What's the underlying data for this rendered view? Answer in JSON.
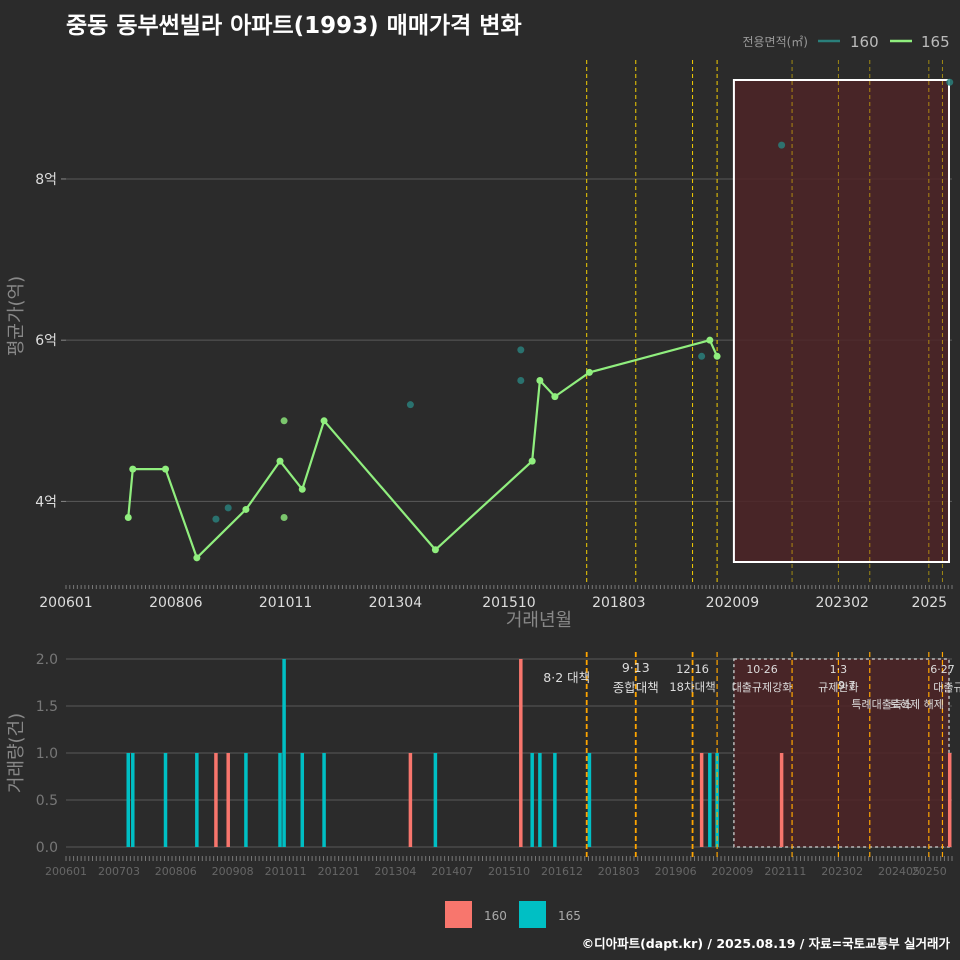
{
  "title": "중동 동부썬빌라 아파트(1993) 매매가격 변화",
  "footer": "©디아파트(dapt.kr) / 2025.08.19 / 자료=국토교통부 실거래가",
  "colors": {
    "s160": "#2a7f7b",
    "s165": "#90ee7e",
    "bar160": "#f8766d",
    "bar165": "#00bfc4",
    "policy": "#ffd700",
    "policy_low": "#ffa500",
    "highlight": "#4d2427"
  },
  "chart_data": [
    {
      "type": "line",
      "xlabel": "거래년월",
      "ylabel": "평균가(억)",
      "xlim": [
        2006.0,
        2025.5
      ],
      "ylim": [
        3.0,
        9.6
      ],
      "x_ticks": [
        {
          "x": 2006.0,
          "label": "200601"
        },
        {
          "x": 2008.4167,
          "label": "200806"
        },
        {
          "x": 2010.8333,
          "label": "201011"
        },
        {
          "x": 2013.25,
          "label": "201304"
        },
        {
          "x": 2015.75,
          "label": "201510"
        },
        {
          "x": 2018.1667,
          "label": "201803"
        },
        {
          "x": 2020.6667,
          "label": "202009"
        },
        {
          "x": 2023.0833,
          "label": "202302"
        },
        {
          "x": 2025.0,
          "label": "2025"
        }
      ],
      "y_ticks": [
        {
          "y": 4,
          "label": "4억"
        },
        {
          "y": 6,
          "label": "6억"
        },
        {
          "y": 8,
          "label": "8억"
        }
      ],
      "legend": {
        "title": "전용면적(㎡)",
        "position": "top-right"
      },
      "series": [
        {
          "name": "160",
          "points": [
            {
              "x": 2009.3,
              "y": 3.78
            },
            {
              "x": 2009.57,
              "y": 3.92
            },
            {
              "x": 2013.58,
              "y": 5.2
            },
            {
              "x": 2016.01,
              "y": 5.88
            },
            {
              "x": 2016.01,
              "y": 5.5
            },
            {
              "x": 2019.99,
              "y": 5.8
            },
            {
              "x": 2021.75,
              "y": 8.42
            },
            {
              "x": 2025.45,
              "y": 9.2
            }
          ]
        },
        {
          "name": "165",
          "points": [
            {
              "x": 2007.37,
              "y": 3.8
            },
            {
              "x": 2007.47,
              "y": 4.4
            },
            {
              "x": 2008.19,
              "y": 4.4
            },
            {
              "x": 2008.88,
              "y": 3.3
            },
            {
              "x": 2009.96,
              "y": 3.9
            },
            {
              "x": 2010.71,
              "y": 4.5
            },
            {
              "x": 2011.2,
              "y": 4.15
            },
            {
              "x": 2011.68,
              "y": 5.0
            },
            {
              "x": 2014.13,
              "y": 3.4
            },
            {
              "x": 2016.26,
              "y": 4.5
            },
            {
              "x": 2016.43,
              "y": 5.5
            },
            {
              "x": 2016.76,
              "y": 5.3
            },
            {
              "x": 2017.52,
              "y": 5.6
            },
            {
              "x": 2020.17,
              "y": 6.0
            },
            {
              "x": 2020.33,
              "y": 5.8
            }
          ],
          "extra_points": [
            {
              "x": 2010.8,
              "y": 5.0
            },
            {
              "x": 2010.8,
              "y": 3.8
            }
          ]
        }
      ]
    },
    {
      "type": "bar",
      "ylabel": "거래량(건)",
      "xlim": [
        2006.0,
        2025.5
      ],
      "ylim": [
        0,
        2.0
      ],
      "x_ticks": [
        {
          "x": 2006.0,
          "label": "200601"
        },
        {
          "x": 2007.1667,
          "label": "200703"
        },
        {
          "x": 2008.4167,
          "label": "200806"
        },
        {
          "x": 2009.6667,
          "label": "200908"
        },
        {
          "x": 2010.8333,
          "label": "201011"
        },
        {
          "x": 2012.0,
          "label": "201201"
        },
        {
          "x": 2013.25,
          "label": "201304"
        },
        {
          "x": 2014.5,
          "label": "201407"
        },
        {
          "x": 2015.75,
          "label": "201510"
        },
        {
          "x": 2016.9167,
          "label": "201612"
        },
        {
          "x": 2018.1667,
          "label": "201803"
        },
        {
          "x": 2019.4167,
          "label": "201906"
        },
        {
          "x": 2020.6667,
          "label": "202009"
        },
        {
          "x": 2021.8333,
          "label": "202111"
        },
        {
          "x": 2023.0833,
          "label": "202302"
        },
        {
          "x": 2024.3333,
          "label": "202405"
        },
        {
          "x": 2025.0,
          "label": "20250"
        }
      ],
      "y_ticks": [
        {
          "y": 0,
          "label": "0.0"
        },
        {
          "y": 0.5,
          "label": "0.5"
        },
        {
          "y": 1.0,
          "label": "1.0"
        },
        {
          "y": 1.5,
          "label": "1.5"
        },
        {
          "y": 2.0,
          "label": "2.0"
        }
      ],
      "legend": {
        "position": "bottom",
        "entries": [
          "160",
          "165"
        ]
      },
      "series": [
        {
          "name": "160",
          "bars": [
            {
              "x": 2009.3,
              "y": 1
            },
            {
              "x": 2009.57,
              "y": 1
            },
            {
              "x": 2013.58,
              "y": 1
            },
            {
              "x": 2016.01,
              "y": 2
            },
            {
              "x": 2019.99,
              "y": 1
            },
            {
              "x": 2021.75,
              "y": 1
            },
            {
              "x": 2025.45,
              "y": 1
            }
          ]
        },
        {
          "name": "165",
          "bars": [
            {
              "x": 2007.37,
              "y": 1
            },
            {
              "x": 2007.47,
              "y": 1
            },
            {
              "x": 2008.19,
              "y": 1
            },
            {
              "x": 2008.88,
              "y": 1
            },
            {
              "x": 2009.96,
              "y": 1
            },
            {
              "x": 2010.71,
              "y": 1
            },
            {
              "x": 2010.8,
              "y": 2
            },
            {
              "x": 2011.2,
              "y": 1
            },
            {
              "x": 2011.68,
              "y": 1
            },
            {
              "x": 2014.13,
              "y": 1
            },
            {
              "x": 2016.26,
              "y": 1
            },
            {
              "x": 2016.43,
              "y": 1
            },
            {
              "x": 2016.76,
              "y": 1
            },
            {
              "x": 2017.52,
              "y": 1
            },
            {
              "x": 2020.17,
              "y": 1
            },
            {
              "x": 2020.33,
              "y": 1
            }
          ]
        }
      ]
    }
  ],
  "highlight_range": [
    2020.7,
    2025.5
  ],
  "policies": [
    {
      "x": 2017.46,
      "date": "8·2",
      "name": "대책"
    },
    {
      "x": 2018.54,
      "date": "9·13",
      "name": "종합대책"
    },
    {
      "x": 2019.79,
      "date": "12·16",
      "name": "18차대책"
    },
    {
      "x": 2020.33,
      "date": "",
      "name": ""
    },
    {
      "x": 2021.98,
      "date": "10·26",
      "name": "대출규제강화"
    },
    {
      "x": 2023.0,
      "date": "1·3",
      "name": "규제완화"
    },
    {
      "x": 2023.69,
      "date": "9·7",
      "name": "특례대출축소"
    },
    {
      "x": 2024.99,
      "date": "",
      "name": "토허제 해제"
    },
    {
      "x": 2025.29,
      "date": "6·27",
      "name": "대출규"
    }
  ]
}
